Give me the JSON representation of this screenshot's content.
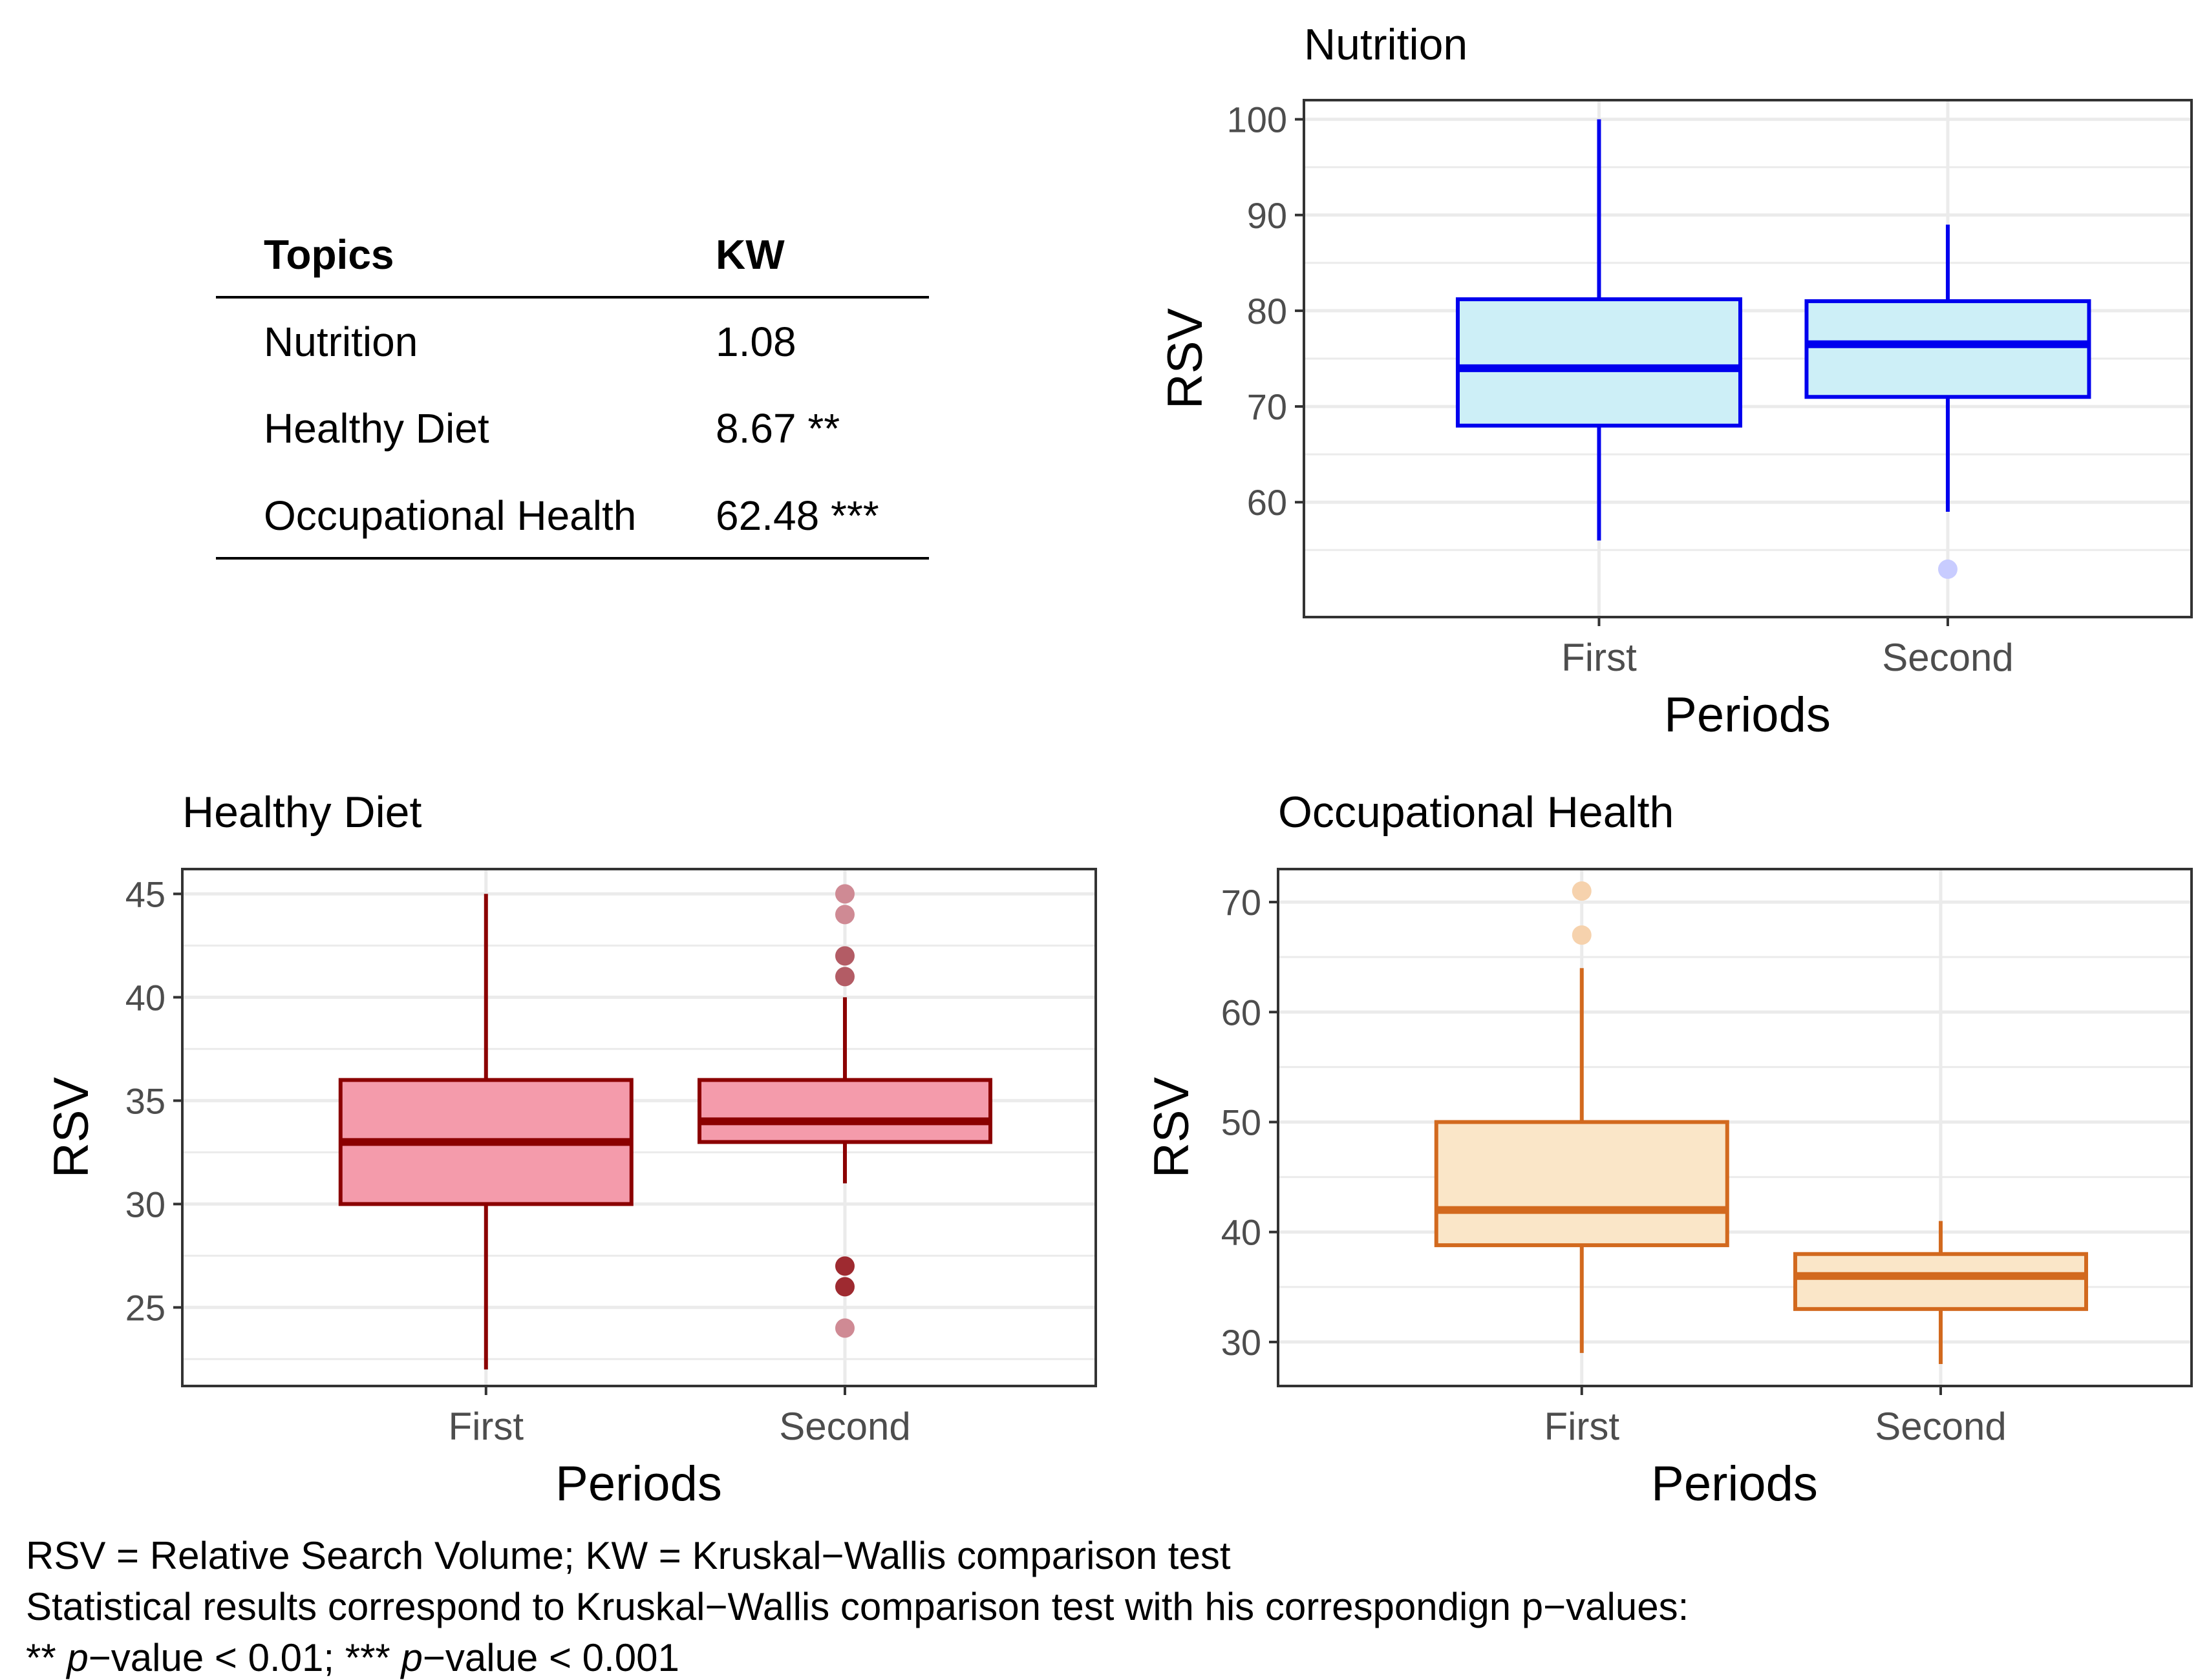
{
  "table": {
    "header": {
      "topics": "Topics",
      "kw": "KW"
    },
    "rows": [
      {
        "topic": "Nutrition",
        "kw": "1.08"
      },
      {
        "topic": "Healthy Diet",
        "kw": "8.67 **"
      },
      {
        "topic": "Occupational Health",
        "kw": "62.48 ***"
      }
    ]
  },
  "colors": {
    "nutrition_line": "#0000ee",
    "nutrition_fill": "#cdeff7",
    "nutrition_outlier": "#c8ccff",
    "healthy_line": "#8b0000",
    "healthy_fill": "#f49bab",
    "healthy_outlier_light": "#cf8a94",
    "healthy_outlier_mid": "#b35c65",
    "healthy_outlier_dark": "#9e2a30",
    "occupational_line": "#d2691e",
    "occupational_fill": "#fae6c8",
    "occupational_outlier": "#f6d2ad",
    "grid": "#ebebeb",
    "axis": "#333333",
    "tick_text": "#4d4d4d"
  },
  "chart_data": [
    {
      "type": "boxplot",
      "title": "Nutrition",
      "xlabel": "Periods",
      "ylabel": "RSV",
      "ylim": [
        48,
        102
      ],
      "yticks": [
        60,
        70,
        80,
        90,
        100
      ],
      "categories": [
        "First",
        "Second"
      ],
      "boxes": [
        {
          "category": "First",
          "min": 56,
          "q1": 68,
          "median": 74,
          "q3": 81.2,
          "max": 100,
          "outliers": []
        },
        {
          "category": "Second",
          "min": 59,
          "q1": 71,
          "median": 76.5,
          "q3": 81,
          "max": 89,
          "outliers": [
            53
          ]
        }
      ]
    },
    {
      "type": "boxplot",
      "title": "Healthy Diet",
      "xlabel": "Periods",
      "ylabel": "RSV",
      "ylim": [
        21.2,
        46.2
      ],
      "yticks": [
        25,
        30,
        35,
        40,
        45
      ],
      "categories": [
        "First",
        "Second"
      ],
      "boxes": [
        {
          "category": "First",
          "min": 22,
          "q1": 30,
          "median": 33,
          "q3": 36,
          "max": 45,
          "outliers": []
        },
        {
          "category": "Second",
          "min": 31,
          "q1": 33,
          "median": 34,
          "q3": 36,
          "max": 40,
          "outliers": [
            45,
            44,
            42,
            41,
            27,
            26,
            24
          ]
        }
      ]
    },
    {
      "type": "boxplot",
      "title": "Occupational Health",
      "xlabel": "Periods",
      "ylabel": "RSV",
      "ylim": [
        26,
        73
      ],
      "yticks": [
        30,
        40,
        50,
        60,
        70
      ],
      "categories": [
        "First",
        "Second"
      ],
      "boxes": [
        {
          "category": "First",
          "min": 29,
          "q1": 38.8,
          "median": 42,
          "q3": 50,
          "max": 64,
          "outliers": [
            71,
            67
          ]
        },
        {
          "category": "Second",
          "min": 28,
          "q1": 33,
          "median": 36,
          "q3": 38,
          "max": 41,
          "outliers": []
        }
      ]
    }
  ],
  "footnotes": {
    "line1": "RSV = Relative Search Volume; KW = Kruskal−Wallis comparison test",
    "line2": "Statistical results correspond to Kruskal−Wallis comparison test with his correspondign p−values:",
    "line3_prefix": "** ",
    "line3_p1": "p",
    "line3_mid": "−value < 0.01; *** ",
    "line3_p2": "p",
    "line3_end": "−value < 0.001"
  }
}
